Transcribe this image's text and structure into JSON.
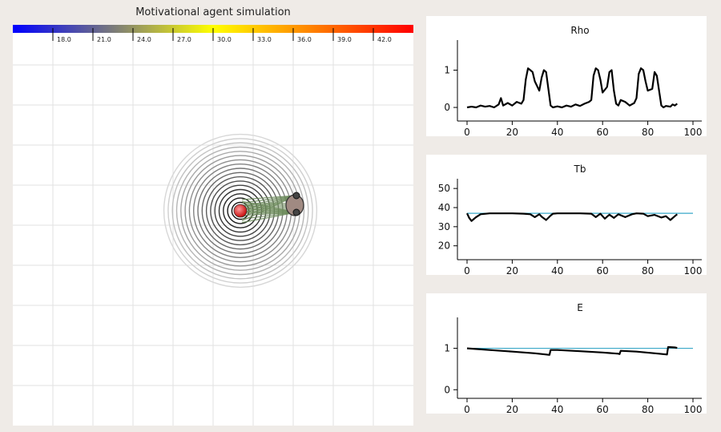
{
  "simulation": {
    "title": "Motivational agent simulation",
    "colorbar": {
      "colors": [
        "#0000ff",
        "#7a7a7a",
        "#ffff00",
        "#ff8000",
        "#ff0000"
      ],
      "tick_labels": [
        "18.0",
        "21.0",
        "24.0",
        "27.0",
        "30.0",
        "33.0",
        "36.0",
        "39.0",
        "42.0"
      ]
    },
    "heat_source": {
      "color": "#dd2020"
    },
    "agent": {
      "body_color": "#a08a82",
      "sensor_color": "#444444",
      "trail_color": "#6b8a5a"
    }
  },
  "chart_data": [
    {
      "type": "line",
      "title": "Rho",
      "xlim": [
        0,
        100
      ],
      "ylim": [
        -0.3,
        1.7
      ],
      "xticks": [
        "0",
        "20",
        "40",
        "60",
        "80",
        "100"
      ],
      "yticks": [
        "0",
        "1"
      ],
      "series": [
        {
          "color": "#000000",
          "x": [
            0,
            2,
            4,
            6,
            8,
            10,
            12,
            14,
            15,
            16,
            18,
            20,
            22,
            24,
            25,
            26,
            27,
            28,
            29,
            30,
            32,
            33,
            34,
            35,
            36,
            37,
            38,
            40,
            42,
            44,
            46,
            48,
            50,
            52,
            54,
            55,
            56,
            57,
            58,
            59,
            60,
            62,
            63,
            64,
            65,
            66,
            67,
            68,
            70,
            72,
            74,
            75,
            76,
            77,
            78,
            79,
            80,
            82,
            83,
            84,
            85,
            86,
            87,
            88,
            90,
            91,
            92,
            93
          ],
          "y": [
            0.0,
            0.02,
            0.0,
            0.05,
            0.02,
            0.04,
            0.0,
            0.08,
            0.25,
            0.05,
            0.12,
            0.05,
            0.15,
            0.1,
            0.2,
            0.75,
            1.05,
            1.0,
            0.95,
            0.7,
            0.45,
            0.8,
            1.0,
            0.95,
            0.5,
            0.05,
            0.0,
            0.03,
            0.0,
            0.05,
            0.02,
            0.08,
            0.04,
            0.1,
            0.15,
            0.2,
            0.85,
            1.05,
            1.0,
            0.75,
            0.4,
            0.55,
            0.95,
            1.0,
            0.45,
            0.1,
            0.05,
            0.2,
            0.15,
            0.05,
            0.12,
            0.25,
            0.9,
            1.05,
            1.0,
            0.7,
            0.45,
            0.5,
            0.95,
            0.85,
            0.45,
            0.05,
            0.0,
            0.04,
            0.02,
            0.08,
            0.05,
            0.1
          ]
        }
      ]
    },
    {
      "type": "line",
      "title": "Tb",
      "xlim": [
        0,
        100
      ],
      "ylim": [
        14,
        53
      ],
      "xticks": [
        "0",
        "20",
        "40",
        "60",
        "80",
        "100"
      ],
      "yticks": [
        "20",
        "30",
        "40",
        "50"
      ],
      "reference_line": {
        "y": 37,
        "color": "#3aa8c8"
      },
      "series": [
        {
          "color": "#000000",
          "x": [
            0,
            1,
            2,
            4,
            6,
            10,
            15,
            20,
            25,
            28,
            30,
            32,
            33,
            35,
            37,
            38,
            40,
            45,
            50,
            55,
            57,
            59,
            61,
            63,
            65,
            67,
            70,
            73,
            75,
            78,
            80,
            83,
            86,
            88,
            90,
            92,
            93
          ],
          "y": [
            37,
            34.5,
            33,
            35,
            36.5,
            37,
            37,
            37,
            36.8,
            36.5,
            35,
            36.5,
            35.2,
            33.5,
            35.8,
            36.8,
            37,
            37,
            37,
            36.8,
            35,
            36.8,
            34.2,
            36.3,
            34.6,
            36.5,
            35,
            36.5,
            37,
            36.8,
            35.5,
            36.2,
            34.8,
            35.5,
            33.5,
            35.5,
            36.5
          ]
        }
      ]
    },
    {
      "type": "line",
      "title": "E",
      "xlim": [
        0,
        100
      ],
      "ylim": [
        -0.15,
        1.65
      ],
      "xticks": [
        "0",
        "20",
        "40",
        "60",
        "80",
        "100"
      ],
      "yticks": [
        "0",
        "1"
      ],
      "reference_line": {
        "y": 1,
        "color": "#3aa8c8"
      },
      "series": [
        {
          "color": "#000000",
          "x": [
            0,
            5,
            10,
            20,
            30,
            35,
            36.5,
            37,
            40,
            50,
            60,
            67,
            67.5,
            68,
            75,
            85,
            88.5,
            89,
            92,
            93
          ],
          "y": [
            1.0,
            0.98,
            0.96,
            0.92,
            0.88,
            0.85,
            0.84,
            0.96,
            0.96,
            0.93,
            0.9,
            0.87,
            0.86,
            0.94,
            0.92,
            0.87,
            0.85,
            1.03,
            1.02,
            1.01
          ]
        }
      ]
    }
  ]
}
